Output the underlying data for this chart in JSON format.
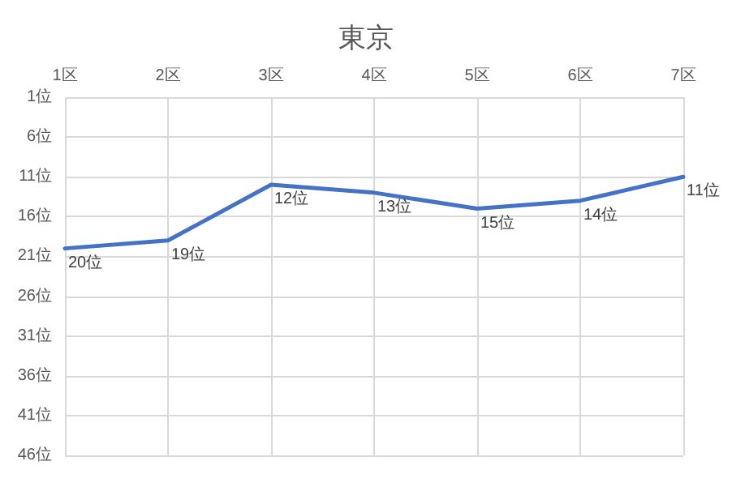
{
  "chart_data": {
    "type": "line",
    "title": "東京",
    "categories": [
      "1区",
      "2区",
      "3区",
      "4区",
      "5区",
      "6区",
      "7区"
    ],
    "series": [
      {
        "color": "#4472c4",
        "values": [
          20,
          19,
          12,
          13,
          15,
          14,
          11
        ],
        "value_labels": [
          "20位",
          "19位",
          "12位",
          "13位",
          "15位",
          "14位",
          "11位"
        ]
      }
    ],
    "ylim": [
      46,
      1
    ],
    "yticks": [
      {
        "value": 1,
        "label": "1位"
      },
      {
        "value": 6,
        "label": "6位"
      },
      {
        "value": 11,
        "label": "11位"
      },
      {
        "value": 16,
        "label": "16位"
      },
      {
        "value": 21,
        "label": "21位"
      },
      {
        "value": 26,
        "label": "26位"
      },
      {
        "value": 31,
        "label": "31位"
      },
      {
        "value": 36,
        "label": "36位"
      },
      {
        "value": 41,
        "label": "41位"
      },
      {
        "value": 46,
        "label": "46位"
      }
    ],
    "grid": true,
    "marker": "none",
    "line_style": "solid"
  }
}
